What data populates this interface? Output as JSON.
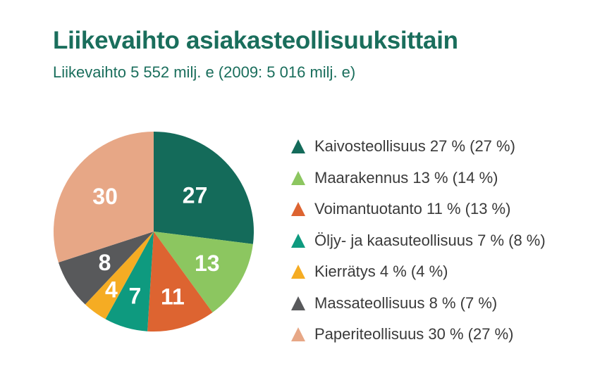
{
  "title": "Liikevaihto asiakasteollisuuksittain",
  "subtitle": "Liikevaihto 5 552 milj. e (2009: 5 016 milj. e)",
  "chart_data": {
    "type": "pie",
    "start_angle_deg": 0,
    "direction": "clockwise",
    "slices": [
      {
        "value": 27,
        "label": "27",
        "legend": "Kaivosteollisuus 27 % (27 %)",
        "color": "#146b5a"
      },
      {
        "value": 13,
        "label": "13",
        "legend": "Maarakennus 13 % (14 %)",
        "color": "#8cc660"
      },
      {
        "value": 11,
        "label": "11",
        "legend": "Voimantuotanto 11 % (13 %)",
        "color": "#dd6431"
      },
      {
        "value": 7,
        "label": "7",
        "legend": "Öljy- ja kaasuteollisuus 7 % (8 %)",
        "color": "#0e9a7f"
      },
      {
        "value": 4,
        "label": "4",
        "legend": "Kierrätys 4 % (4 %)",
        "color": "#f5ac23"
      },
      {
        "value": 8,
        "label": "8",
        "legend": "Massateollisuus 8 % (7 %)",
        "color": "#58595b"
      },
      {
        "value": 30,
        "label": "30",
        "legend": "Paperiteollisuus 30 % (27 %)",
        "color": "#e7a786"
      }
    ]
  }
}
